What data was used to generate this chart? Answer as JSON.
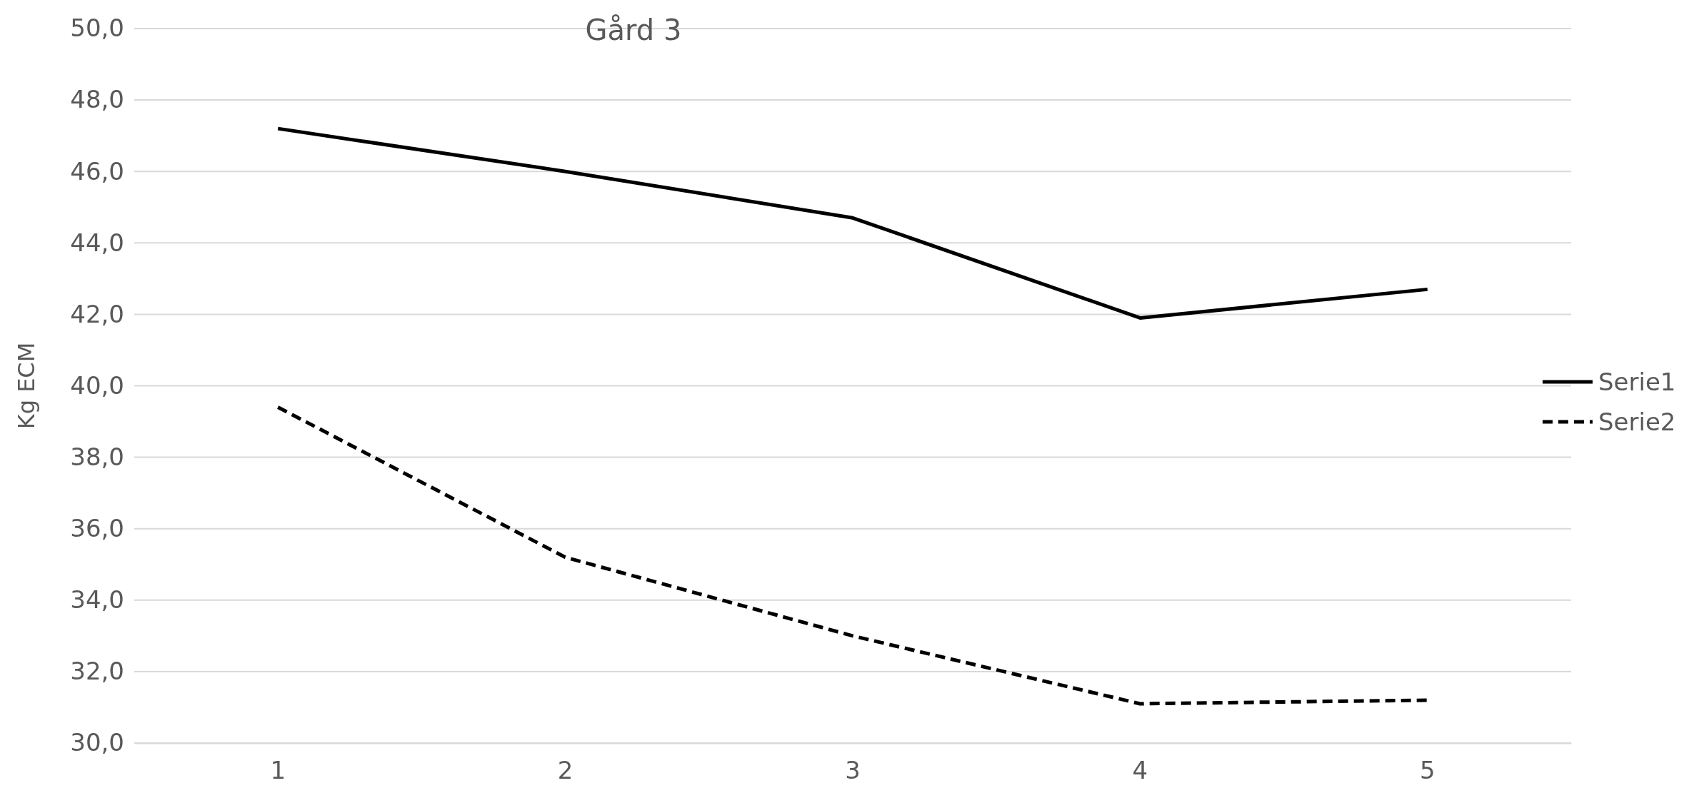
{
  "chart_data": {
    "type": "line",
    "title": "Gård 3",
    "ylabel": "Kg ECM",
    "categories": [
      "1",
      "2",
      "3",
      "4",
      "5"
    ],
    "series": [
      {
        "name": "Serie1",
        "color": "#000000",
        "line_style": "solid",
        "values": [
          47.2,
          46.0,
          44.7,
          41.9,
          42.7
        ]
      },
      {
        "name": "Serie2",
        "color": "#000000",
        "line_style": "dashed",
        "values": [
          39.4,
          35.2,
          33.0,
          31.1,
          31.2
        ]
      }
    ],
    "ylim": [
      30,
      50
    ],
    "yticks": [
      {
        "value": 30,
        "label": "30,0"
      },
      {
        "value": 32,
        "label": "32,0"
      },
      {
        "value": 34,
        "label": "34,0"
      },
      {
        "value": 36,
        "label": "36,0"
      },
      {
        "value": 38,
        "label": "38,0"
      },
      {
        "value": 40,
        "label": "40,0"
      },
      {
        "value": 42,
        "label": "42,0"
      },
      {
        "value": 44,
        "label": "44,0"
      },
      {
        "value": 46,
        "label": "46,0"
      },
      {
        "value": 48,
        "label": "48,0"
      },
      {
        "value": 50,
        "label": "50,0"
      }
    ],
    "grid": "y",
    "legend": "right",
    "marker": "none"
  }
}
